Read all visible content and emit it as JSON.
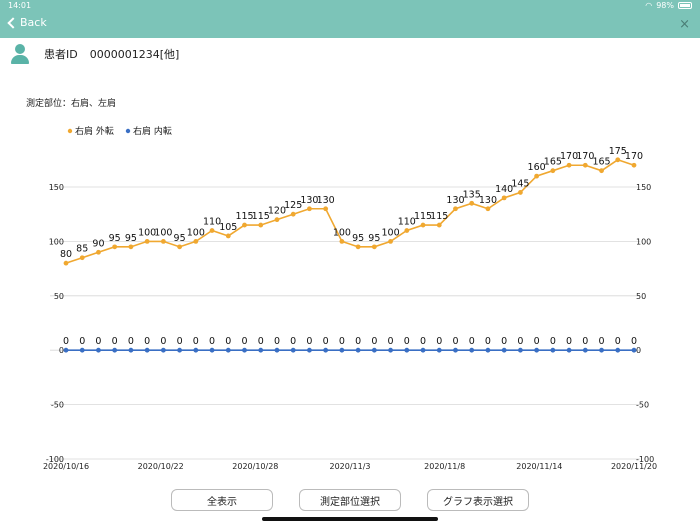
{
  "status": {
    "time": "14:01",
    "battery": "98%"
  },
  "nav": {
    "back_label": "Back",
    "close_label": "×"
  },
  "patient": {
    "label": "患者ID",
    "id": "0000001234[他]"
  },
  "measure": {
    "label": "測定部位：右肩、左肩"
  },
  "buttons": {
    "show_all": "全表示",
    "select_site": "測定部位選択",
    "select_graph": "グラフ表示選択"
  },
  "colors": {
    "header": "#7cc4b8",
    "series1": "#f0a830",
    "series2": "#3a6fc4"
  },
  "chart_data": {
    "type": "line",
    "title": "",
    "xlabel": "",
    "ylabel": "",
    "ylim": [
      -100,
      150
    ],
    "yticks": [
      150,
      100,
      50,
      0,
      -50,
      -100
    ],
    "grid": true,
    "legend": "top-left",
    "x_tick_labels": [
      "2020/10/16",
      "2020/10/22",
      "2020/10/28",
      "2020/11/3",
      "2020/11/8",
      "2020/11/14",
      "2020/11/20"
    ],
    "series": [
      {
        "name": "右肩 外転",
        "values": [
          80,
          85,
          90,
          95,
          95,
          100,
          100,
          95,
          100,
          110,
          105,
          115,
          115,
          120,
          125,
          130,
          130,
          100,
          95,
          95,
          100,
          110,
          115,
          115,
          130,
          135,
          130,
          140,
          145,
          160,
          165,
          170,
          170,
          165,
          175,
          170
        ]
      },
      {
        "name": "右肩 内転",
        "values": [
          0,
          0,
          0,
          0,
          0,
          0,
          0,
          0,
          0,
          0,
          0,
          0,
          0,
          0,
          0,
          0,
          0,
          0,
          0,
          0,
          0,
          0,
          0,
          0,
          0,
          0,
          0,
          0,
          0,
          0,
          0,
          0,
          0,
          0,
          0,
          0
        ]
      }
    ]
  }
}
